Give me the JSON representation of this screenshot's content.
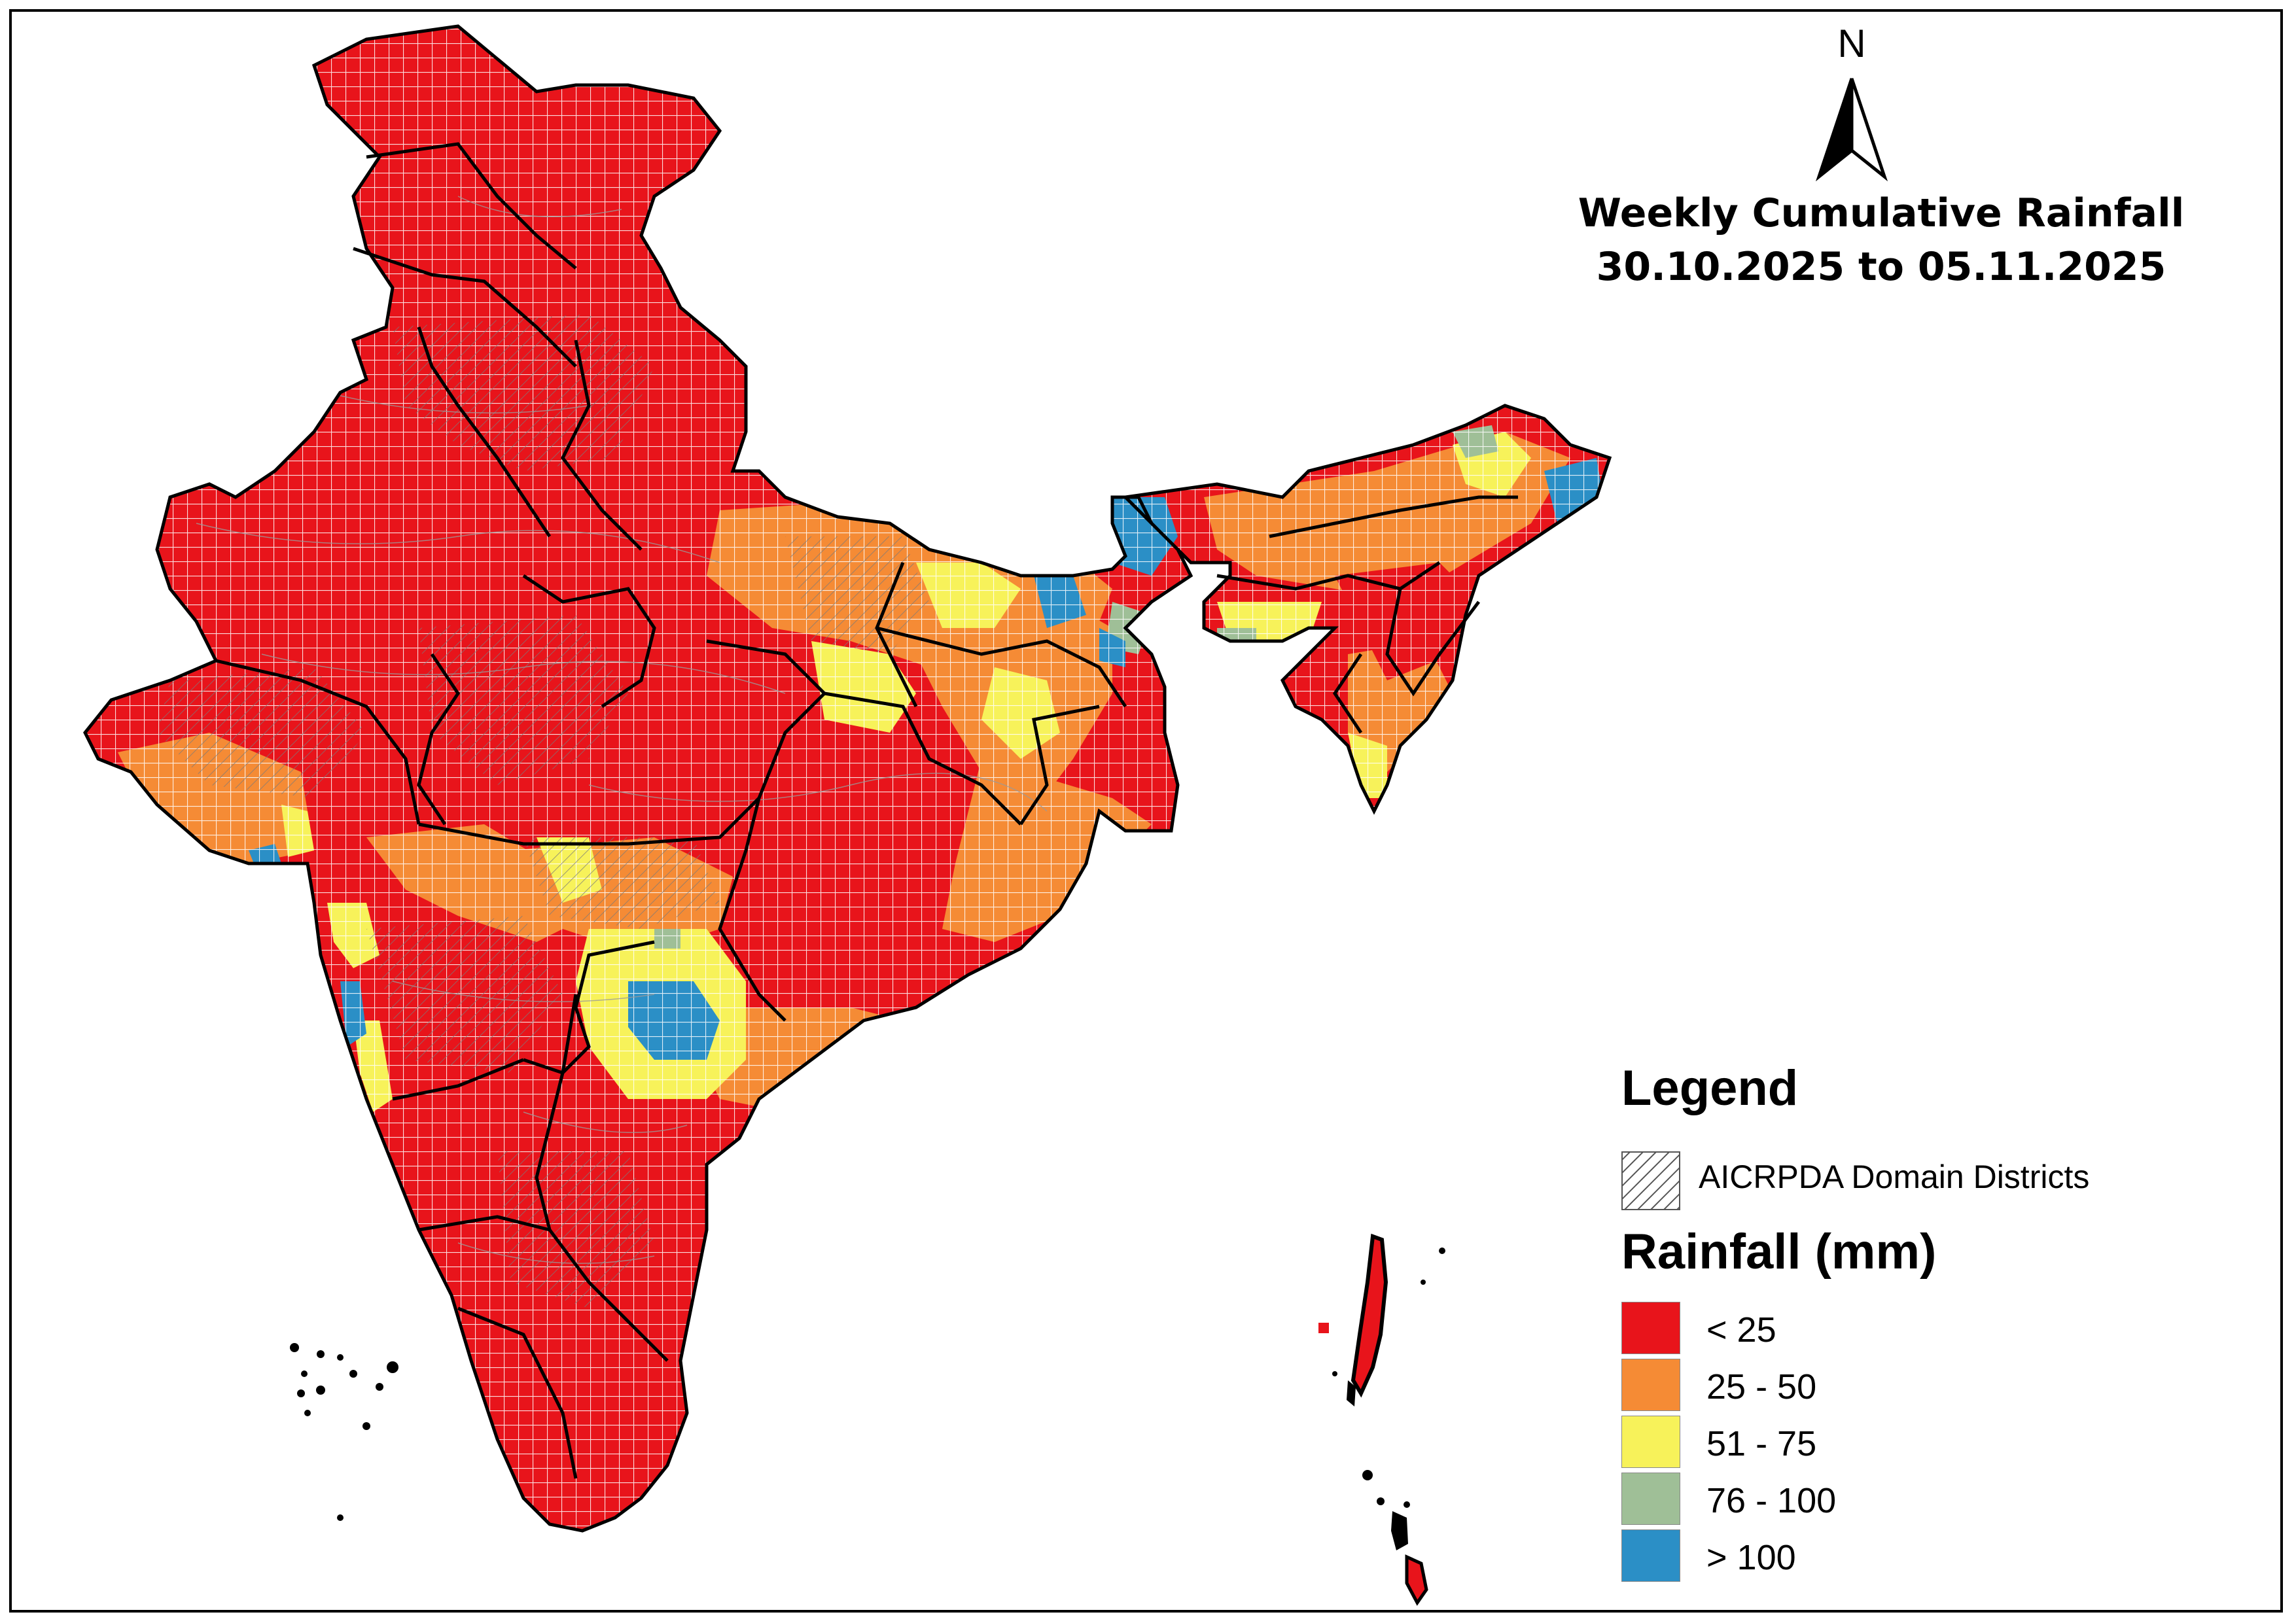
{
  "map": {
    "title_line1": "Weekly Cumulative Rainfall",
    "title_line2": "30.10.2025 to 05.11.2025",
    "north_arrow_label": "N"
  },
  "legend": {
    "heading": "Legend",
    "domain_districts_label": "AICRPDA Domain Districts",
    "rainfall_heading": "Rainfall (mm)",
    "classes": [
      {
        "label": "< 25",
        "color": "#e8141b"
      },
      {
        "label": "25 - 50",
        "color": "#f58b35"
      },
      {
        "label": "51 - 75",
        "color": "#f7f25a"
      },
      {
        "label": "76 - 100",
        "color": "#9fbf97"
      },
      {
        "label": "> 100",
        "color": "#2b8fc6"
      }
    ]
  }
}
